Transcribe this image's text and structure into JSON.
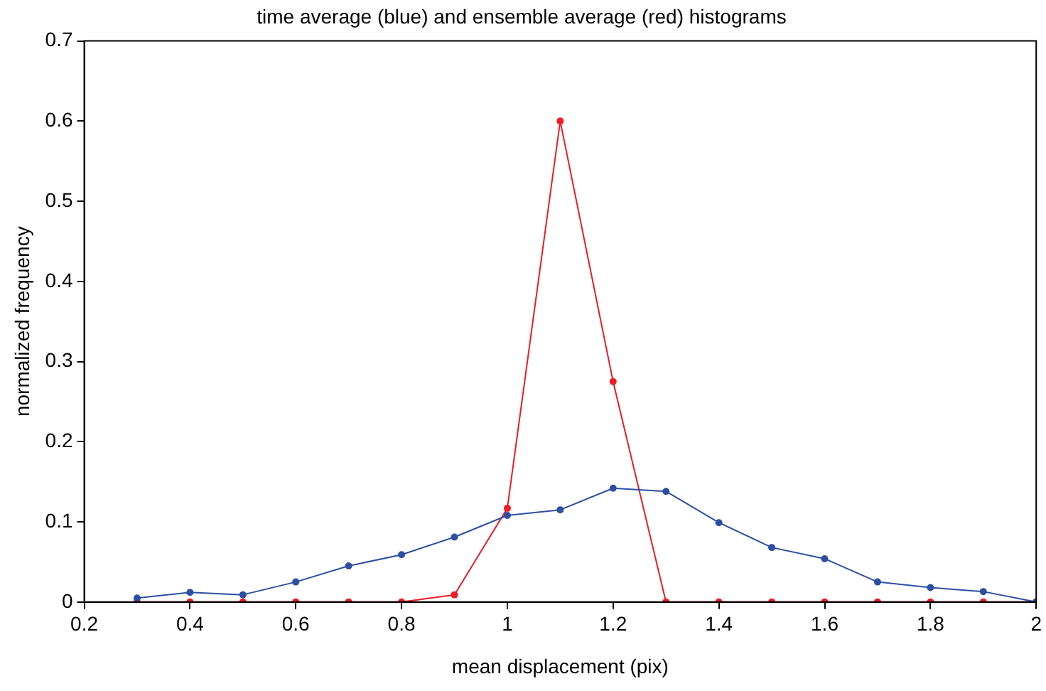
{
  "chart_data": {
    "type": "line",
    "title": "time average (blue) and ensemble average (red) histograms",
    "xlabel": "mean displacement (pix)",
    "ylabel": "normalized frequency",
    "x": [
      0.3,
      0.4,
      0.5,
      0.6,
      0.7,
      0.8,
      0.9,
      1.0,
      1.1,
      1.2,
      1.3,
      1.4,
      1.5,
      1.6,
      1.7,
      1.8,
      1.9,
      2.0
    ],
    "series": [
      {
        "color": "#2c4fa3",
        "values": [
          0.005,
          0.012,
          0.009,
          0.025,
          0.045,
          0.059,
          0.081,
          0.108,
          0.115,
          0.142,
          0.138,
          0.099,
          0.068,
          0.054,
          0.025,
          0.018,
          0.013,
          0
        ]
      },
      {
        "color": "#ee1c25",
        "values": [
          0,
          0,
          0,
          0,
          0,
          0,
          0.009,
          0.117,
          0.6,
          0.275,
          0,
          0,
          0,
          0,
          0,
          0,
          0,
          0
        ]
      }
    ],
    "xlim": [
      0.2,
      2
    ],
    "xticks": [
      0.2,
      0.4,
      0.6,
      0.8,
      1,
      1.2,
      1.4,
      1.6,
      1.8,
      2
    ],
    "ylim": [
      0,
      0.7
    ],
    "yticks": [
      0,
      0.1,
      0.2,
      0.3,
      0.4,
      0.5,
      0.6,
      0.7
    ],
    "grid": false,
    "legend": false,
    "marker": "circle",
    "line_style": "solid"
  }
}
